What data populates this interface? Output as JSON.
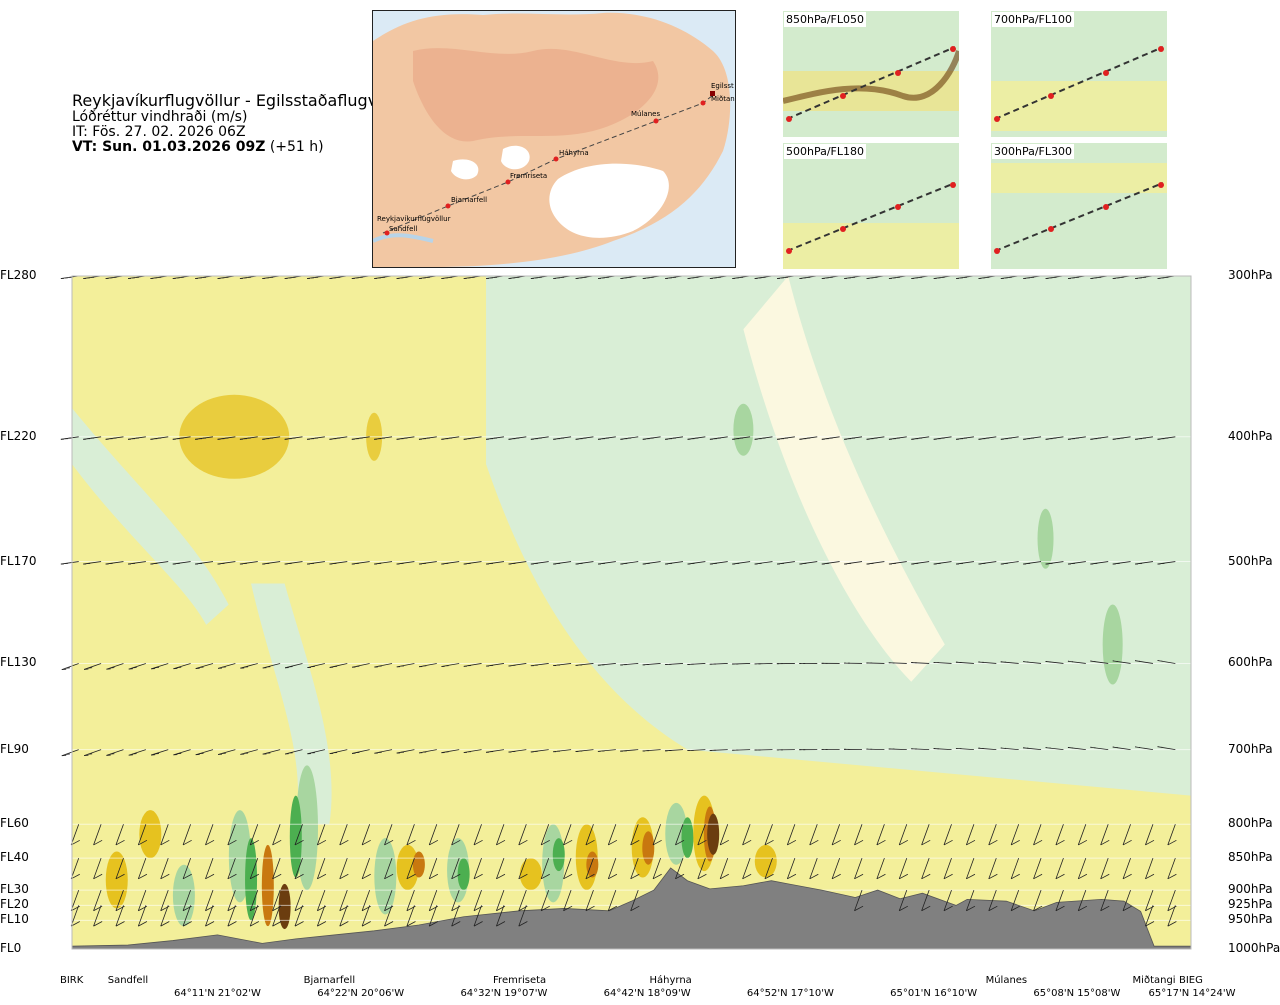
{
  "header": {
    "route": "Reykjavíkurflugvöllur - Egilsstaðaflugvöllur",
    "quantity": "Lóðréttur vindhraði (m/s)",
    "issue_time": "IT: Fös. 27. 02. 2026 06Z",
    "valid_label": "VT: Sun. 01.03.2026 09Z",
    "valid_offset": "(+51 h)"
  },
  "map": {
    "stations": [
      "Reykjavíkurflugvöllur",
      "Sandfell",
      "Bjarnarfell",
      "Fremriseta",
      "Háhyrna",
      "Múlanes",
      "Miðtangi",
      "Egilsst"
    ]
  },
  "mini_maps": [
    {
      "label": "850hPa/FL050"
    },
    {
      "label": "700hPa/FL100"
    },
    {
      "label": "500hPa/FL180"
    },
    {
      "label": "300hPa/FL300"
    }
  ],
  "chart_data": {
    "type": "heatmap",
    "title": "",
    "flight_levels": [
      "FL280",
      "FL220",
      "FL170",
      "FL130",
      "FL90",
      "FL60",
      "FL40",
      "FL30",
      "FL20",
      "FL10",
      "FL0"
    ],
    "pressure_levels": [
      "300hPa",
      "400hPa",
      "500hPa",
      "600hPa",
      "700hPa",
      "800hPa",
      "850hPa",
      "900hPa",
      "925hPa",
      "950hPa",
      "1000hPa"
    ],
    "pressure_values_hpa": [
      300,
      400,
      500,
      600,
      700,
      800,
      850,
      900,
      925,
      950,
      1000
    ],
    "waypoints": [
      "BIRK",
      "Sandfell",
      "Bjarnarfell",
      "Fremriseta",
      "Háhyrna",
      "Múlanes",
      "Miðtangi",
      "BIEG"
    ],
    "waypoint_fraction": [
      0.0,
      0.05,
      0.23,
      0.4,
      0.535,
      0.835,
      0.967,
      1.0
    ],
    "coordinates": [
      "64°11'N 21°02'W",
      "64°22'N 20°06'W",
      "64°32'N 19°07'W",
      "64°42'N 18°09'W",
      "64°52'N 17°10'W",
      "65°01'N 16°10'W",
      "65°08'N 15°08'W",
      "65°17'N 14°24'W"
    ],
    "coordinate_fraction": [
      0.13,
      0.258,
      0.386,
      0.514,
      0.642,
      0.77,
      0.898,
      1.0
    ],
    "terrain_profile_hpa": [
      [
        0.0,
        995
      ],
      [
        0.05,
        993
      ],
      [
        0.09,
        985
      ],
      [
        0.13,
        975
      ],
      [
        0.17,
        990
      ],
      [
        0.2,
        982
      ],
      [
        0.23,
        976
      ],
      [
        0.27,
        968
      ],
      [
        0.31,
        958
      ],
      [
        0.35,
        944
      ],
      [
        0.4,
        934
      ],
      [
        0.44,
        930
      ],
      [
        0.48,
        934
      ],
      [
        0.5,
        918
      ],
      [
        0.52,
        900
      ],
      [
        0.535,
        865
      ],
      [
        0.55,
        885
      ],
      [
        0.57,
        898
      ],
      [
        0.6,
        893
      ],
      [
        0.625,
        885
      ],
      [
        0.64,
        890
      ],
      [
        0.67,
        900
      ],
      [
        0.7,
        912
      ],
      [
        0.72,
        900
      ],
      [
        0.74,
        914
      ],
      [
        0.76,
        905
      ],
      [
        0.79,
        925
      ],
      [
        0.8,
        915
      ],
      [
        0.835,
        918
      ],
      [
        0.86,
        934
      ],
      [
        0.88,
        920
      ],
      [
        0.92,
        915
      ],
      [
        0.94,
        918
      ],
      [
        0.955,
        935
      ],
      [
        0.967,
        995
      ],
      [
        1.0,
        995
      ]
    ],
    "wind_rows_hpa": [
      300,
      400,
      500,
      600,
      700,
      800,
      850,
      900,
      925
    ],
    "color_scale": {
      "strong_down": "#6b3d0f",
      "moderate_down": "#c8780f",
      "weak_down": "#e6c21f",
      "light_down": "#f3ef9a",
      "neutral": "#fbf8e0",
      "light_up": "#d9eed6",
      "weak_up": "#a8d6a0",
      "moderate_up": "#4caf50",
      "strong_up": "#1b7a2b",
      "terrain": "#808080"
    }
  }
}
